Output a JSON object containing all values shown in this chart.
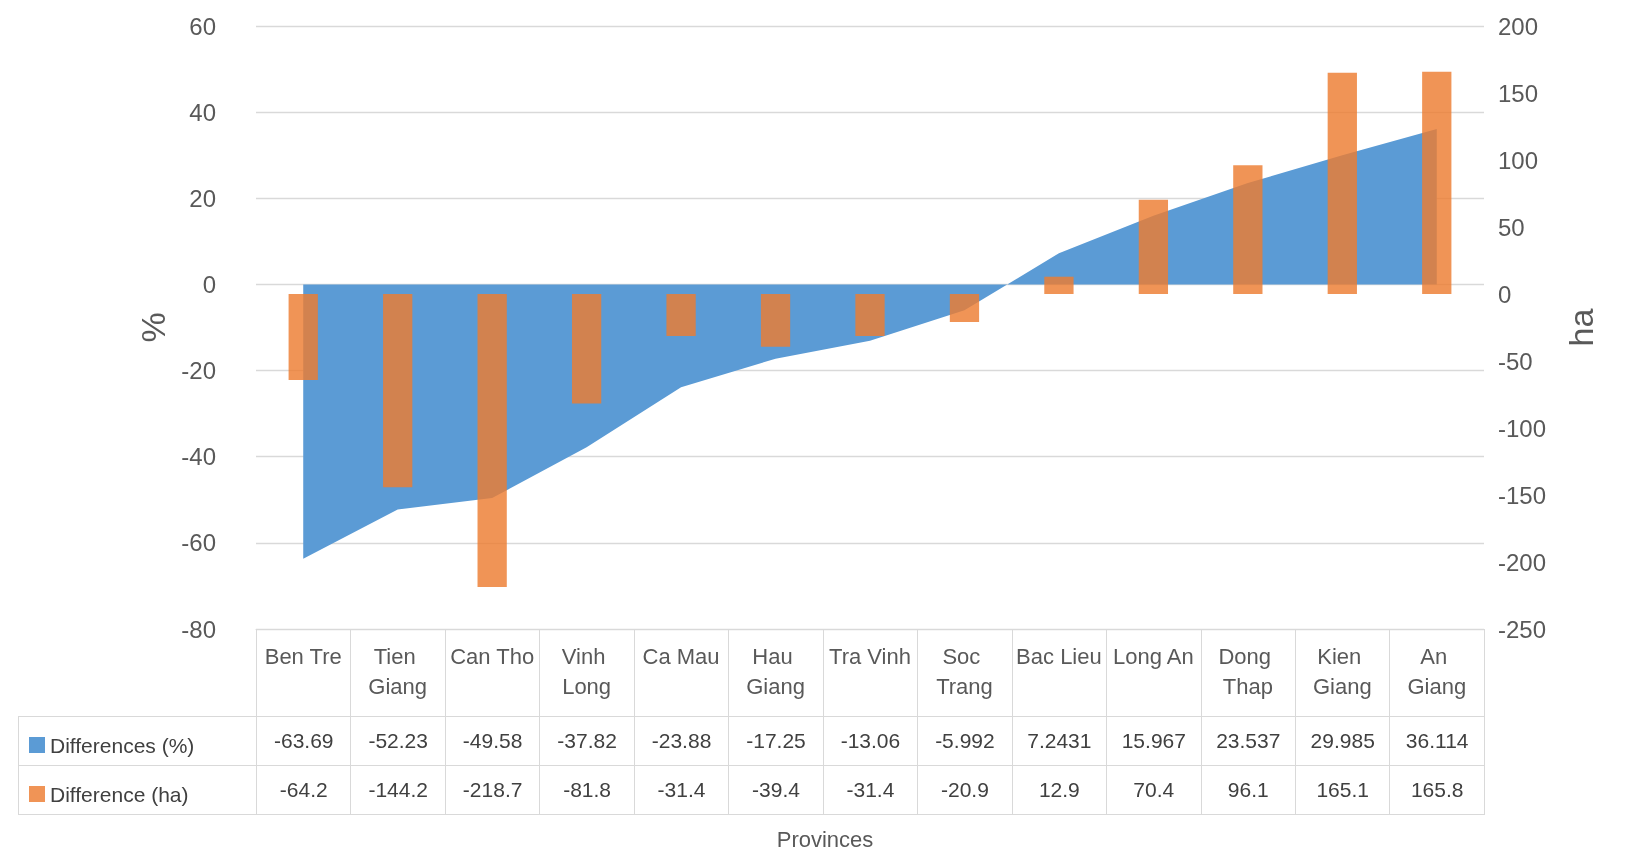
{
  "chart_data": {
    "type": "bar",
    "annotations": [
      "Provinces"
    ],
    "ylabel": "%",
    "y2label": "ha",
    "categories": [
      "Ben Tre",
      "Tien Giang",
      "Can Tho",
      "Vinh Long",
      "Ca Mau",
      "Hau Giang",
      "Tra Vinh",
      "Soc Trang",
      "Bac Lieu",
      "Long An",
      "Dong Thap",
      "Kien Giang",
      "An Giang"
    ],
    "series": [
      {
        "name": "Differences (%)",
        "type": "area",
        "color": "#5b9bd5",
        "values": [
          -63.69,
          -52.23,
          -49.58,
          -37.82,
          -23.88,
          -17.25,
          -13.06,
          -5.992,
          7.2431,
          15.967,
          23.537,
          29.985,
          36.114
        ]
      },
      {
        "name": "Difference (ha)",
        "axis": "y2",
        "color": "#ed7d31",
        "values": [
          -64.2,
          -144.2,
          -218.7,
          -81.8,
          -31.4,
          -39.4,
          -31.4,
          -20.9,
          12.9,
          70.4,
          96.1,
          165.1,
          165.8
        ]
      }
    ],
    "ylim": [
      -80,
      60
    ],
    "yticks": [
      -80,
      -60,
      -40,
      -20,
      0,
      20,
      40,
      60
    ],
    "y2lim": [
      -250,
      200
    ],
    "y2ticks": [
      -250,
      -200,
      -150,
      -100,
      -50,
      0,
      50,
      100,
      150,
      200
    ],
    "grid": "y",
    "legend": "bottom left",
    "data_labels": true
  }
}
